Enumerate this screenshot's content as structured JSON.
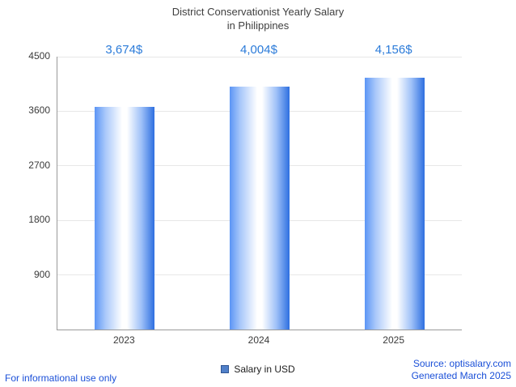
{
  "title": {
    "line1": "District Conservationist Yearly Salary",
    "line2": "in Philippines"
  },
  "chart_data": {
    "type": "bar",
    "title": "District Conservationist Yearly Salary in Philippines",
    "categories": [
      "2023",
      "2024",
      "2025"
    ],
    "series": [
      {
        "name": "Salary in USD",
        "values": [
          3674,
          4004,
          4156
        ]
      }
    ],
    "value_labels": [
      "3,674$",
      "4,004$",
      "4,156$"
    ],
    "xlabel": "",
    "ylabel": "",
    "ylim": [
      0,
      4500
    ],
    "yticks": [
      900,
      1800,
      2700,
      3600,
      4500
    ],
    "grid": true,
    "legend_position": "bottom"
  },
  "legend": {
    "label": "Salary in USD"
  },
  "footer": {
    "left": "For informational use only",
    "source": "Source: optisalary.com",
    "generated": "Generated March 2025"
  },
  "colors": {
    "value_label": "#2b7bd9",
    "link": "#1b50d8",
    "bar_left": "#5b95f5",
    "bar_mid": "#ffffff",
    "bar_right": "#2e6fe0",
    "legend_swatch": "#5180c9",
    "grid": "#e7e7e7",
    "axis": "#9a9a9a"
  }
}
